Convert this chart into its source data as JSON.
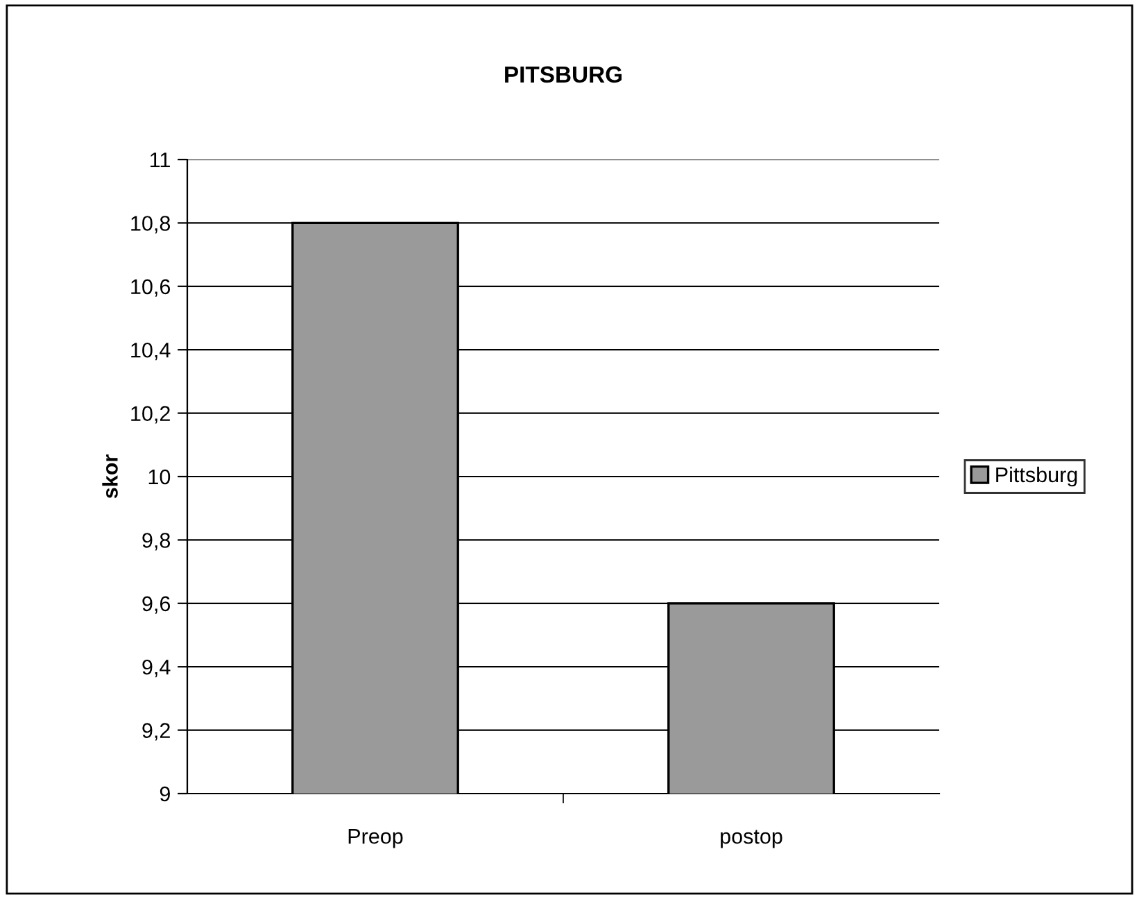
{
  "chart_data": {
    "type": "bar",
    "title": "PITSBURG",
    "ylabel": "skor",
    "categories": [
      "Preop",
      "postop"
    ],
    "series": [
      {
        "name": "Pittsburg",
        "color": "#9a9a9a",
        "values": [
          10.8,
          9.6
        ]
      }
    ],
    "ylim": [
      9,
      11
    ],
    "yticks": [
      9,
      {
        "value": 9.2,
        "label": "9,2"
      },
      {
        "value": 9.4,
        "label": "9,4"
      },
      {
        "value": 9.6,
        "label": "9,6"
      },
      {
        "value": 9.8,
        "label": "9,8"
      },
      10,
      {
        "value": 10.2,
        "label": "10,2"
      },
      {
        "value": 10.4,
        "label": "10,4"
      },
      {
        "value": 10.6,
        "label": "10,6"
      },
      {
        "value": 10.8,
        "label": "10,8"
      },
      11
    ],
    "grid": "y",
    "legend": "right"
  }
}
